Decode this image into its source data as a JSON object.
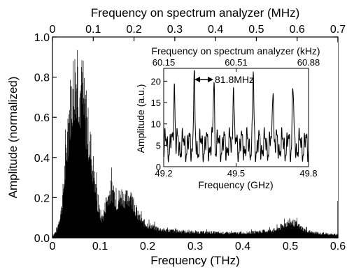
{
  "chart_data": [
    {
      "type": "area",
      "xlabel": "Frequency (THz)",
      "ylabel": "Amplitude (normalized)",
      "top_axis_label": "Frequency on spectrum analyzer (MHz)",
      "xlim": [
        0,
        0.6
      ],
      "ylim": [
        0,
        1.0
      ],
      "x_ticks": [
        "0",
        "0.1",
        "0.2",
        "0.3",
        "0.4",
        "0.5",
        "0.6"
      ],
      "y_ticks": [
        "0.0",
        "0.2",
        "0.4",
        "0.6",
        "0.8",
        "1.0"
      ],
      "top_xlim": [
        0,
        0.7
      ],
      "top_ticks": [
        "0",
        "0.1",
        "0.2",
        "0.3",
        "0.4",
        "0.5",
        "0.6",
        "0.7"
      ],
      "grid": false,
      "envelope": {
        "x": [
          0.0,
          0.01,
          0.02,
          0.025,
          0.03,
          0.035,
          0.04,
          0.045,
          0.05,
          0.055,
          0.06,
          0.065,
          0.07,
          0.075,
          0.08,
          0.085,
          0.09,
          0.095,
          0.1,
          0.105,
          0.11,
          0.115,
          0.12,
          0.125,
          0.13,
          0.135,
          0.14,
          0.145,
          0.15,
          0.155,
          0.16,
          0.165,
          0.17,
          0.175,
          0.18,
          0.19,
          0.2,
          0.21,
          0.22,
          0.23,
          0.25,
          0.27,
          0.3,
          0.33,
          0.36,
          0.4,
          0.44,
          0.47,
          0.48,
          0.49,
          0.5,
          0.51,
          0.52,
          0.53,
          0.54,
          0.55,
          0.57,
          0.6
        ],
        "y": [
          0.01,
          0.05,
          0.2,
          0.38,
          0.55,
          0.75,
          0.9,
          0.97,
          1.0,
          0.96,
          0.9,
          0.84,
          0.75,
          0.66,
          0.56,
          0.45,
          0.33,
          0.22,
          0.15,
          0.12,
          0.18,
          0.24,
          0.28,
          0.3,
          0.27,
          0.23,
          0.25,
          0.27,
          0.25,
          0.24,
          0.26,
          0.25,
          0.22,
          0.18,
          0.14,
          0.1,
          0.08,
          0.07,
          0.06,
          0.05,
          0.045,
          0.04,
          0.035,
          0.035,
          0.03,
          0.03,
          0.04,
          0.05,
          0.07,
          0.09,
          0.1,
          0.09,
          0.07,
          0.05,
          0.04,
          0.03,
          0.025,
          0.02
        ]
      }
    },
    {
      "type": "line",
      "xlabel": "Frequency (GHz)",
      "ylabel": "Amplitude (a.u.)",
      "top_axis_label": "Frequency on spectrum analyzer (kHz)",
      "xlim": [
        49.2,
        49.8
      ],
      "ylim": [
        0,
        23
      ],
      "x_ticks": [
        "49.2",
        "49.5",
        "49.8"
      ],
      "y_ticks": [
        "0",
        "5",
        "10",
        "15",
        "20"
      ],
      "top_ticks": [
        "60.15",
        "60.51",
        "60.88"
      ],
      "annotation": "81.8MHz",
      "peaks_x": [
        49.244,
        49.326,
        49.408,
        49.489,
        49.571,
        49.653,
        49.735
      ],
      "peaks_y": [
        20.5,
        21.5,
        21.0,
        21.0,
        20.5,
        21.0,
        20.0
      ],
      "baseline": 5
    }
  ]
}
